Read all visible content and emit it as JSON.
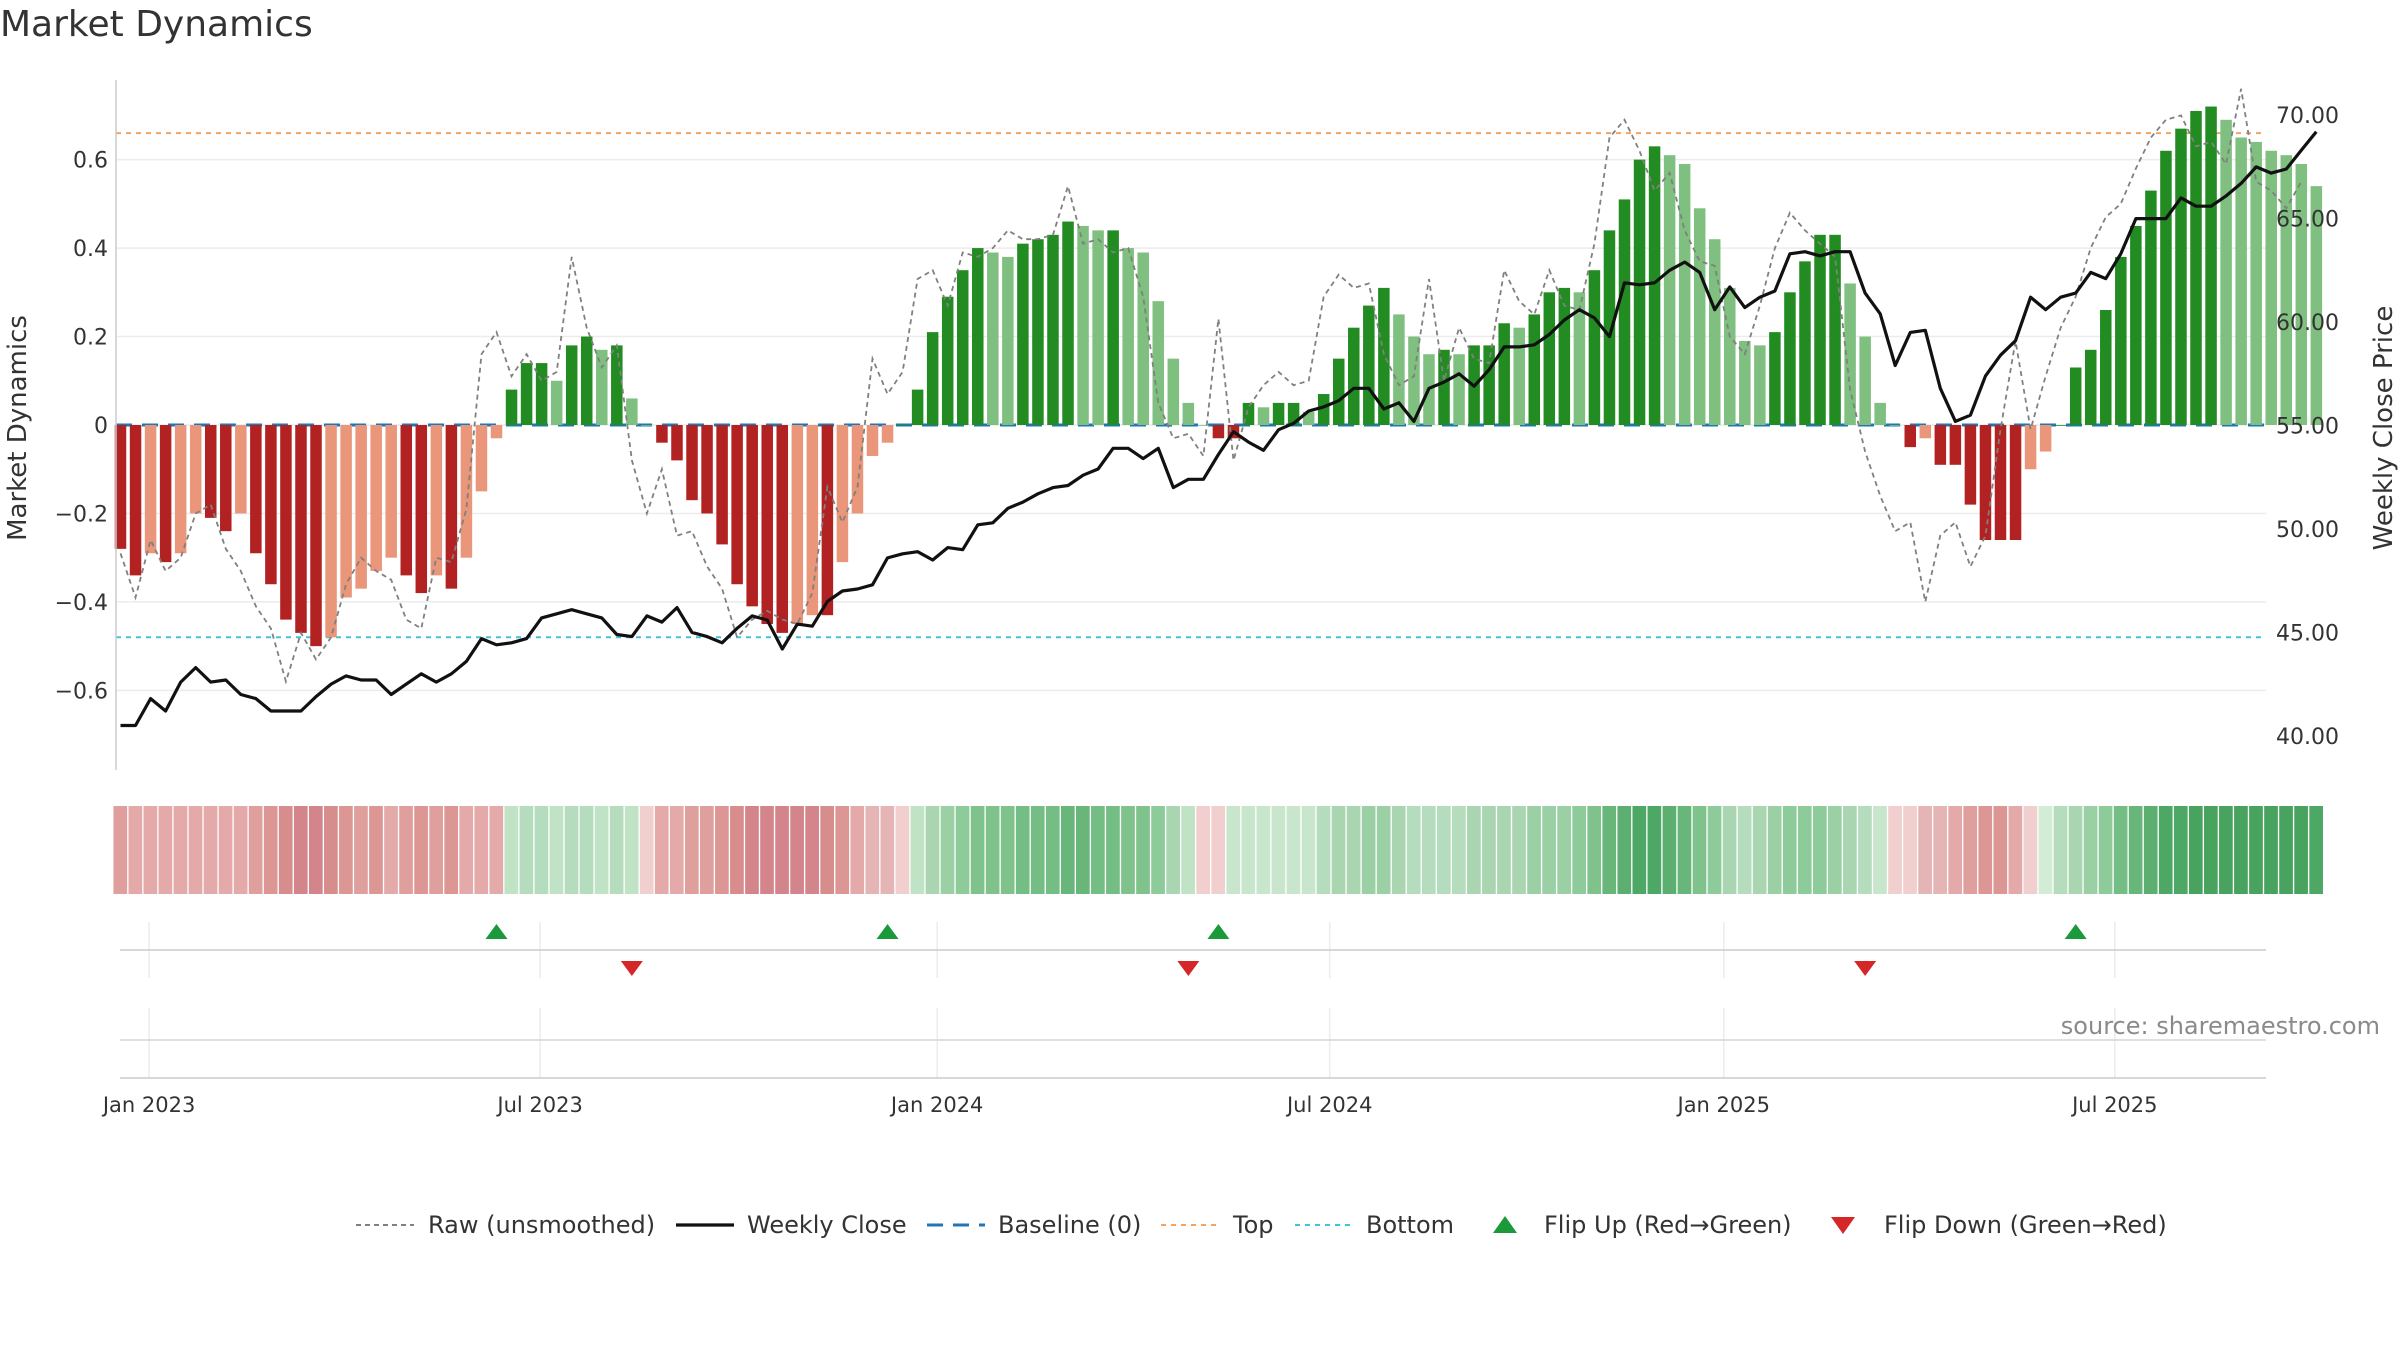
{
  "title": "Market Dynamics",
  "watermark": "source: sharemaestro.com",
  "chart_data": {
    "type": "bar",
    "y_label_left": "Market Dynamics",
    "y_label_right": "Weekly Close Price",
    "left_ticks": [
      "0.6",
      "0.4",
      "0.2",
      "0",
      "−0.2",
      "−0.4",
      "−0.6"
    ],
    "left_tick_values": [
      0.6,
      0.4,
      0.2,
      0,
      -0.2,
      -0.4,
      -0.6
    ],
    "right_ticks": [
      "70.00",
      "65.00",
      "60.00",
      "55.00",
      "50.00",
      "45.00",
      "40.00"
    ],
    "right_tick_values": [
      70,
      65,
      60,
      55,
      50,
      45,
      40
    ],
    "ylim_left": [
      -0.78,
      0.78
    ],
    "ylim_right": [
      38.35,
      71.7
    ],
    "x_ticks": [
      "Jan 2023",
      "Jul 2023",
      "Jan 2024",
      "Jul 2024",
      "Jan 2025",
      "Jul 2025"
    ],
    "x_tick_weeks": [
      1.9,
      27.9,
      54.3,
      80.4,
      106.6,
      132.6
    ],
    "top_threshold": 0.66,
    "bottom_threshold": -0.48,
    "baseline": 0,
    "dynamics": [
      -0.28,
      -0.34,
      -0.29,
      -0.31,
      -0.29,
      -0.2,
      -0.21,
      -0.24,
      -0.2,
      -0.29,
      -0.36,
      -0.44,
      -0.47,
      -0.5,
      -0.48,
      -0.39,
      -0.37,
      -0.33,
      -0.3,
      -0.34,
      -0.38,
      -0.34,
      -0.37,
      -0.3,
      -0.15,
      -0.03,
      0.08,
      0.14,
      0.14,
      0.1,
      0.18,
      0.2,
      0.17,
      0.18,
      0.06,
      0,
      -0.04,
      -0.08,
      -0.17,
      -0.2,
      -0.27,
      -0.36,
      -0.41,
      -0.45,
      -0.47,
      -0.45,
      -0.43,
      -0.43,
      -0.31,
      -0.2,
      -0.07,
      -0.04,
      0,
      0.08,
      0.21,
      0.29,
      0.35,
      0.4,
      0.39,
      0.38,
      0.41,
      0.42,
      0.43,
      0.46,
      0.45,
      0.44,
      0.44,
      0.4,
      0.39,
      0.28,
      0.15,
      0.05,
      0,
      -0.03,
      -0.03,
      0.05,
      0.04,
      0.05,
      0.05,
      0.03,
      0.07,
      0.15,
      0.22,
      0.27,
      0.31,
      0.25,
      0.2,
      0.16,
      0.17,
      0.16,
      0.18,
      0.18,
      0.23,
      0.22,
      0.25,
      0.3,
      0.31,
      0.3,
      0.35,
      0.44,
      0.51,
      0.6,
      0.63,
      0.61,
      0.59,
      0.49,
      0.42,
      0.31,
      0.19,
      0.18,
      0.21,
      0.3,
      0.37,
      0.43,
      0.43,
      0.32,
      0.2,
      0.05,
      0,
      -0.05,
      -0.03,
      -0.09,
      -0.09,
      -0.18,
      -0.26,
      -0.26,
      -0.26,
      -0.1,
      -0.06,
      0,
      0.13,
      0.17,
      0.26,
      0.38,
      0.45,
      0.53,
      0.62,
      0.67,
      0.71,
      0.72,
      0.69,
      0.65,
      0.64,
      0.62,
      0.61,
      0.59,
      0.54
    ],
    "raw": [
      -0.29,
      -0.39,
      -0.26,
      -0.33,
      -0.3,
      -0.2,
      -0.18,
      -0.28,
      -0.33,
      -0.41,
      -0.46,
      -0.58,
      -0.47,
      -0.53,
      -0.48,
      -0.36,
      -0.3,
      -0.33,
      -0.35,
      -0.44,
      -0.46,
      -0.3,
      -0.31,
      -0.19,
      0.16,
      0.21,
      0.11,
      0.16,
      0.1,
      0.12,
      0.38,
      0.22,
      0.13,
      0.18,
      -0.08,
      -0.2,
      -0.1,
      -0.25,
      -0.24,
      -0.32,
      -0.37,
      -0.48,
      -0.44,
      -0.42,
      -0.44,
      -0.45,
      -0.38,
      -0.14,
      -0.22,
      -0.14,
      0.15,
      0.07,
      0.12,
      0.33,
      0.35,
      0.27,
      0.39,
      0.38,
      0.4,
      0.44,
      0.42,
      0.42,
      0.43,
      0.54,
      0.41,
      0.42,
      0.39,
      0.4,
      0.29,
      0.05,
      -0.03,
      -0.02,
      -0.07,
      0.24,
      -0.08,
      0.04,
      0.09,
      0.12,
      0.09,
      0.1,
      0.29,
      0.34,
      0.31,
      0.32,
      0.16,
      0.09,
      0.11,
      0.33,
      0.1,
      0.22,
      0.15,
      0.14,
      0.35,
      0.28,
      0.25,
      0.35,
      0.27,
      0.26,
      0.41,
      0.65,
      0.69,
      0.62,
      0.53,
      0.57,
      0.44,
      0.37,
      0.36,
      0.2,
      0.16,
      0.27,
      0.4,
      0.48,
      0.44,
      0.41,
      0.38,
      0.08,
      -0.06,
      -0.16,
      -0.24,
      -0.22,
      -0.4,
      -0.25,
      -0.22,
      -0.32,
      -0.25,
      -0.01,
      0.19,
      -0.01,
      0.11,
      0.22,
      0.29,
      0.4,
      0.47,
      0.5,
      0.58,
      0.65,
      0.69,
      0.7,
      0.63,
      0.64,
      0.59,
      0.76,
      0.55,
      0.53,
      0.49,
      0.55
    ],
    "close": [
      40.5,
      40.5,
      41.8,
      41.2,
      42.6,
      43.3,
      42.6,
      42.7,
      42.0,
      41.8,
      41.2,
      41.2,
      41.2,
      41.9,
      42.5,
      42.9,
      42.7,
      42.7,
      42.0,
      42.5,
      43.0,
      42.6,
      43.0,
      43.6,
      44.7,
      44.4,
      44.5,
      44.7,
      45.7,
      45.9,
      46.1,
      45.9,
      45.7,
      44.9,
      44.8,
      45.8,
      45.5,
      46.2,
      45.0,
      44.8,
      44.5,
      45.2,
      45.8,
      45.6,
      44.2,
      45.4,
      45.3,
      46.5,
      47.0,
      47.1,
      47.3,
      48.6,
      48.8,
      48.9,
      48.5,
      49.1,
      49.0,
      50.2,
      50.3,
      51.0,
      51.3,
      51.7,
      52.0,
      52.1,
      52.6,
      52.9,
      53.9,
      53.9,
      53.4,
      53.9,
      52.0,
      52.4,
      52.4,
      53.6,
      54.7,
      54.2,
      53.8,
      54.8,
      55.1,
      55.7,
      55.9,
      56.2,
      56.8,
      56.8,
      55.8,
      56.1,
      55.2,
      56.8,
      57.1,
      57.5,
      56.9,
      57.7,
      58.8,
      58.8,
      58.9,
      59.4,
      60.1,
      60.6,
      60.2,
      59.3,
      61.9,
      61.8,
      61.9,
      62.5,
      62.9,
      62.4,
      60.6,
      61.7,
      60.7,
      61.2,
      61.5,
      63.3,
      63.4,
      63.2,
      63.4,
      63.4,
      61.4,
      60.4,
      57.9,
      59.5,
      59.6,
      56.8,
      55.2,
      55.5,
      57.4,
      58.4,
      59.1,
      61.2,
      60.6,
      61.2,
      61.4,
      62.4,
      62.1,
      63.3,
      65.0,
      65.0,
      65.0,
      66.0,
      65.6,
      65.6,
      66.1,
      66.7,
      67.5,
      67.2,
      67.4,
      68.3,
      69.2
    ],
    "color_strip": [
      "#df9f9d",
      "#e4aaa9",
      "#e4aaa9",
      "#e4aaa9",
      "#e4aaa9",
      "#e4aaa9",
      "#e4aaa9",
      "#e4aaa9",
      "#e4aaa9",
      "#df9f9d",
      "#dc9795",
      "#d78d8b",
      "#d4858b",
      "#d4858b",
      "#d78d8b",
      "#dc9795",
      "#df9f9d",
      "#dc9795",
      "#e4aaa9",
      "#df9f9d",
      "#dc9795",
      "#df9f9d",
      "#dc9795",
      "#e4aaa9",
      "#e4aaa9",
      "#e4aaa9",
      "#c0e2c5",
      "#b5dcbc",
      "#b5dcbc",
      "#c0e2c5",
      "#b5dcbc",
      "#b5dcbc",
      "#c0e2c5",
      "#b5dcbc",
      "#c0e2c5",
      "#f1cfcf",
      "#e4aaa9",
      "#e4aaa9",
      "#df9f9d",
      "#df9f9d",
      "#dc9795",
      "#d78d8b",
      "#d4858b",
      "#d4858b",
      "#d4858b",
      "#d4858b",
      "#d4858b",
      "#d78d8b",
      "#dc9795",
      "#e4aaa9",
      "#e4b5b4",
      "#e4b5b4",
      "#f1cfcf",
      "#c0e2c5",
      "#a9d5b0",
      "#9ad0a4",
      "#8ecb9a",
      "#7fc28c",
      "#7fc28c",
      "#7fc28c",
      "#74bd84",
      "#74bd84",
      "#74bd84",
      "#68b67a",
      "#68b67a",
      "#74bd84",
      "#74bd84",
      "#7fc28c",
      "#7fc28c",
      "#8ecb9a",
      "#a9d5b0",
      "#c0e2c5",
      "#f1cfcf",
      "#f1cfcf",
      "#c8e6cc",
      "#c8e6cc",
      "#c8e6cc",
      "#c8e6cc",
      "#c8e6cc",
      "#c8e6cc",
      "#b5dcbc",
      "#a9d5b0",
      "#a9d5b0",
      "#9ad0a4",
      "#9ad0a4",
      "#a9d5b0",
      "#b5dcbc",
      "#b5dcbc",
      "#b5dcbc",
      "#b5dcbc",
      "#a9d5b0",
      "#a9d5b0",
      "#a9d5b0",
      "#a9d5b0",
      "#9ad0a4",
      "#9ad0a4",
      "#9ad0a4",
      "#8ecb9a",
      "#7fc28c",
      "#68b67a",
      "#5caf70",
      "#4ea865",
      "#4ea865",
      "#5caf70",
      "#68b67a",
      "#7fc28c",
      "#8ecb9a",
      "#a9d5b0",
      "#b5dcbc",
      "#a9d5b0",
      "#9ad0a4",
      "#8ecb9a",
      "#8ecb9a",
      "#8ecb9a",
      "#9ad0a4",
      "#a9d5b0",
      "#b5dcbc",
      "#c8e6cc",
      "#f1cfcf",
      "#f1cfcf",
      "#e4b5b4",
      "#e4b5b4",
      "#e4aaa9",
      "#df9f9d",
      "#dc9795",
      "#dc9795",
      "#e4aaa9",
      "#f1cfcf",
      "#d3ecd6",
      "#b5dcbc",
      "#a9d5b0",
      "#9ad0a4",
      "#8ecb9a",
      "#74bd84",
      "#68b67a",
      "#5caf70",
      "#4ea865",
      "#4ea865",
      "#47a35e",
      "#47a35e",
      "#47a35e",
      "#47a35e",
      "#47a35e",
      "#47a35e",
      "#47a35e",
      "#47a35e",
      "#4ea865"
    ],
    "flip_up_weeks": [
      25,
      51,
      73,
      130
    ],
    "flip_down_weeks": [
      34,
      71,
      116
    ],
    "colors": {
      "pos_strong": "#228b22",
      "pos_weak": "#7fbf7f",
      "neg_strong": "#b22222",
      "neg_weak": "#e9967a",
      "close_line": "#111111",
      "raw_line": "#808080",
      "baseline": "#1f77b4",
      "top": "#f4a460",
      "bottom": "#40c4d8",
      "flip_up": "#1a9a3a",
      "flip_down": "#d62728"
    },
    "legend": {
      "raw": "Raw (unsmoothed)",
      "close": "Weekly Close",
      "baseline": "Baseline (0)",
      "top": "Top",
      "bottom": "Bottom",
      "flip_up": "Flip Up (Red→Green)",
      "flip_down": "Flip Down (Green→Red)"
    }
  }
}
